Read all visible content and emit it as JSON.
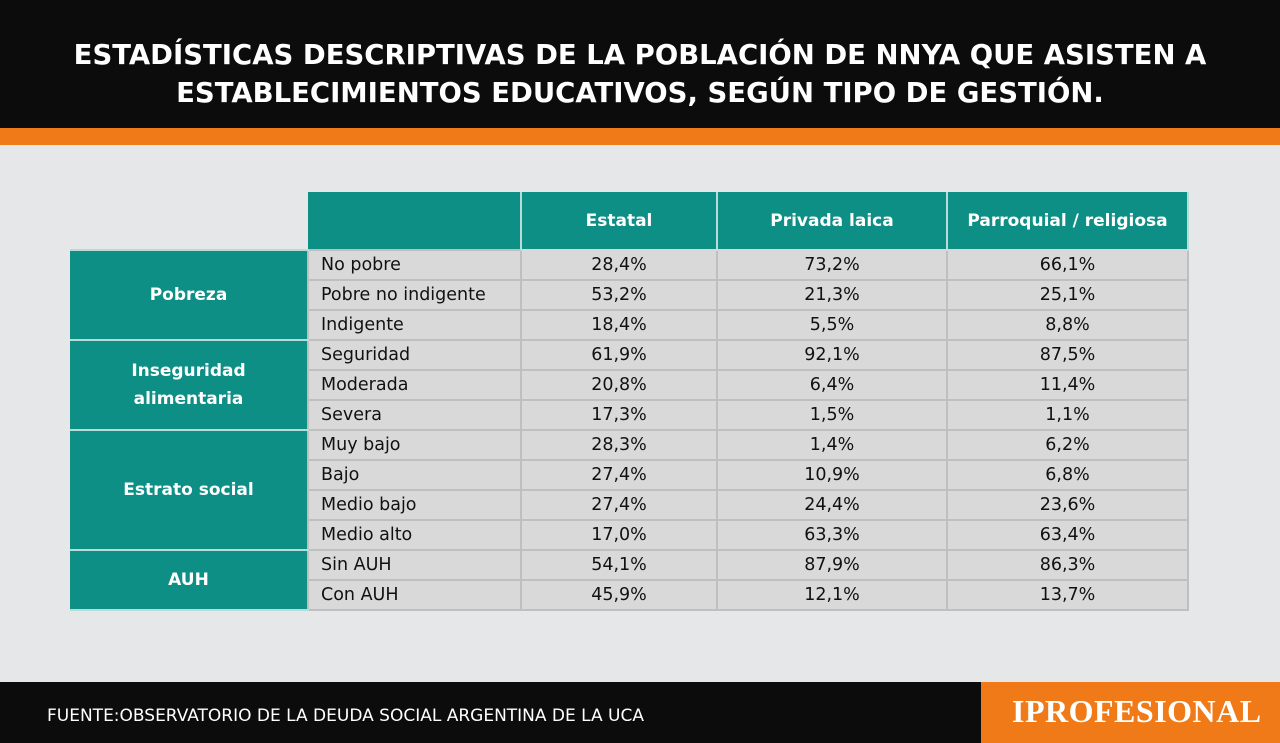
{
  "title_line1": "ESTADÍSTICAS DESCRIPTIVAS DE LA POBLACIÓN DE NNYA QUE ASISTEN A",
  "title_line2": "ESTABLECIMIENTOS EDUCATIVOS, SEGÚN TIPO DE GESTIÓN.",
  "source": "FUENTE:OBSERVATORIO DE LA DEUDA SOCIAL ARGENTINA DE LA UCA",
  "logo": "IPROFESIONAL",
  "colors": {
    "header": "#0c0c0c",
    "accent": "#ef7a17",
    "teal": "#0e8f86",
    "cell": "#d9d9d9",
    "background": "#e6e7e8"
  },
  "chart_data": {
    "type": "table",
    "columns": [
      "Estatal",
      "Privada laica",
      "Parroquial / religiosa"
    ],
    "groups": [
      {
        "name": "Pobreza",
        "rows": [
          {
            "label": "No pobre",
            "values": [
              "28,4%",
              "73,2%",
              "66,1%"
            ]
          },
          {
            "label": "Pobre no indigente",
            "values": [
              "53,2%",
              "21,3%",
              "25,1%"
            ]
          },
          {
            "label": "Indigente",
            "values": [
              "18,4%",
              "5,5%",
              "8,8%"
            ]
          }
        ]
      },
      {
        "name": "Inseguridad alimentaria",
        "rows": [
          {
            "label": "Seguridad",
            "values": [
              "61,9%",
              "92,1%",
              "87,5%"
            ]
          },
          {
            "label": "Moderada",
            "values": [
              "20,8%",
              "6,4%",
              "11,4%"
            ]
          },
          {
            "label": "Severa",
            "values": [
              "17,3%",
              "1,5%",
              "1,1%"
            ]
          }
        ]
      },
      {
        "name": "Estrato social",
        "rows": [
          {
            "label": "Muy bajo",
            "values": [
              "28,3%",
              "1,4%",
              "6,2%"
            ]
          },
          {
            "label": "Bajo",
            "values": [
              "27,4%",
              "10,9%",
              "6,8%"
            ]
          },
          {
            "label": "Medio bajo",
            "values": [
              "27,4%",
              "24,4%",
              "23,6%"
            ]
          },
          {
            "label": "Medio alto",
            "values": [
              "17,0%",
              "63,3%",
              "63,4%"
            ]
          }
        ]
      },
      {
        "name": "AUH",
        "rows": [
          {
            "label": "Sin AUH",
            "values": [
              "54,1%",
              "87,9%",
              "86,3%"
            ]
          },
          {
            "label": "Con AUH",
            "values": [
              "45,9%",
              "12,1%",
              "13,7%"
            ]
          }
        ]
      }
    ]
  }
}
